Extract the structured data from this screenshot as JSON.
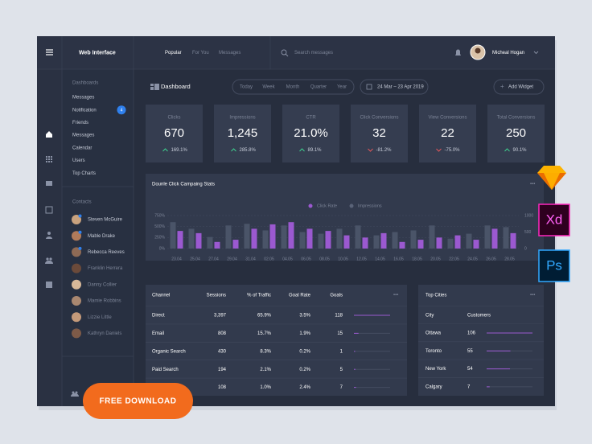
{
  "header": {
    "app_name": "Web Interface",
    "tabs": [
      "Popular",
      "For You",
      "Messages"
    ],
    "search_placeholder": "Search messages",
    "user_name": "Micheal Hogan"
  },
  "sidebar": {
    "section_title": "Dashboards",
    "items": [
      "Messages",
      "Notification",
      "Friends",
      "Messages",
      "Calendar",
      "Users",
      "Top Charts"
    ],
    "notification_badge": 4,
    "contacts_title": "Contacts",
    "contacts": [
      "Steven McGuire",
      "Mable Drake",
      "Rebecca Reeves",
      "Franklin Herrera",
      "Danny Collier",
      "Mamie Robbins",
      "Lizzie Little",
      "Kathryn Daniels"
    ]
  },
  "toolbar": {
    "title": "Dashboard",
    "ranges": [
      "Today",
      "Week",
      "Month",
      "Quarter",
      "Year"
    ],
    "date_range": "24 Mar – 23 Apr 2019",
    "add_button": "Add Widget"
  },
  "kpis": [
    {
      "label": "Clicks",
      "value": "670",
      "change": "169.1%",
      "direction": "up"
    },
    {
      "label": "Impressions",
      "value": "1,245",
      "change": "285.8%",
      "direction": "up"
    },
    {
      "label": "CTR",
      "value": "21.0%",
      "change": "89.1%",
      "direction": "up"
    },
    {
      "label": "Click Conversions",
      "value": "32",
      "change": "-81.2%",
      "direction": "down"
    },
    {
      "label": "View Conversions",
      "value": "22",
      "change": "-75.0%",
      "direction": "down"
    },
    {
      "label": "Total Conversions",
      "value": "250",
      "change": "90.1%",
      "direction": "up"
    }
  ],
  "chart_data": {
    "type": "bar",
    "title": "Dounle Click Campaing Stats",
    "categories": [
      "23.04",
      "25.04",
      "27.04",
      "29.04",
      "31.04",
      "02.05",
      "04.05",
      "06.05",
      "08.05",
      "10.05",
      "12.05",
      "14.05",
      "16.05",
      "18.05",
      "20.05",
      "22.05",
      "24.05",
      "26.05",
      "28.05"
    ],
    "series": [
      {
        "name": "Click Rate",
        "color": "#9b59d0",
        "values": [
          400,
          350,
          150,
          200,
          450,
          550,
          600,
          450,
          400,
          300,
          250,
          350,
          150,
          200,
          250,
          300,
          200,
          450,
          350
        ]
      },
      {
        "name": "Impressions",
        "color": "#4a5468",
        "axis": "y2",
        "values": [
          800,
          600,
          350,
          700,
          750,
          550,
          700,
          500,
          450,
          600,
          700,
          400,
          500,
          550,
          700,
          300,
          450,
          700,
          650
        ]
      }
    ],
    "ylim": [
      0,
      750
    ],
    "yticks": [
      {
        "value": 0,
        "label": "0%"
      },
      {
        "value": 250,
        "label": "250%"
      },
      {
        "value": 500,
        "label": "500%"
      },
      {
        "value": 750,
        "label": "750%"
      }
    ],
    "y2lim": [
      0,
      1000
    ],
    "y2ticks": [
      0,
      500,
      1000
    ],
    "grid": true
  },
  "channels_table": {
    "columns": [
      "Channel",
      "Sessions",
      "% of Traffic",
      "Goal Rate",
      "Goals"
    ],
    "rows": [
      [
        "Direct",
        "3,397",
        "65.9%",
        "3.5%",
        118
      ],
      [
        "Email",
        "808",
        "15.7%",
        "1.9%",
        15
      ],
      [
        "Organic Search",
        "430",
        "8.3%",
        "0.2%",
        1
      ],
      [
        "Paid Search",
        "194",
        "2.1%",
        "0.2%",
        5
      ],
      [
        null,
        "108",
        "1.0%",
        "2.4%",
        7
      ]
    ]
  },
  "cities_table": {
    "title": "Top Cities",
    "columns": [
      "City",
      "Customers"
    ],
    "rows": [
      [
        "Ottawa",
        106
      ],
      [
        "Toronto",
        55
      ],
      [
        "New York",
        54
      ],
      [
        "Calgary",
        7
      ]
    ]
  },
  "promo": {
    "button": "FREE DOWNLOAD",
    "apps": [
      "Xd",
      "Ps"
    ]
  }
}
